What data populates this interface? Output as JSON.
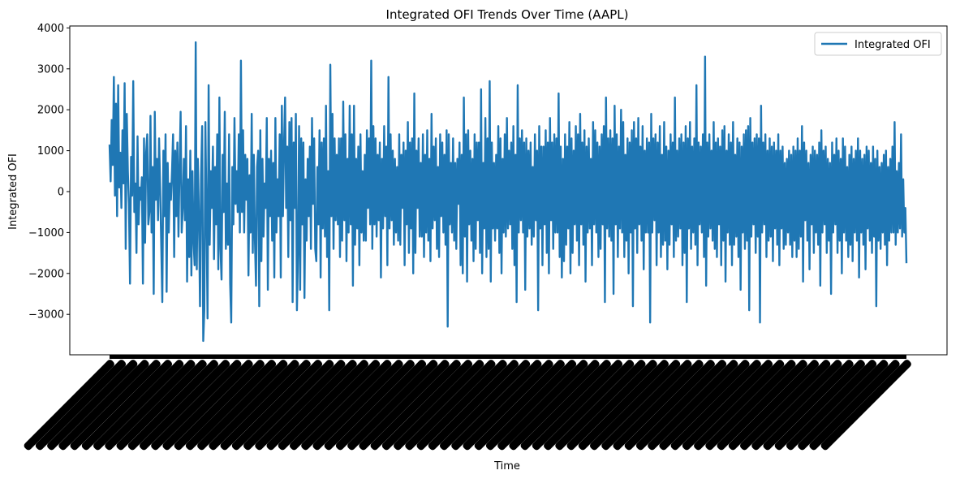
{
  "chart_data": {
    "type": "line",
    "title": "Integrated OFI Trends Over Time (AAPL)",
    "xlabel": "Time",
    "ylabel": "Integrated OFI",
    "ylim": [
      -4000,
      4000
    ],
    "yticks": [
      -3000,
      -2000,
      -1000,
      0,
      1000,
      2000,
      3000,
      4000
    ],
    "ytick_labels": [
      "−3000",
      "−2000",
      "−1000",
      "0",
      "1000",
      "2000",
      "3000",
      "4000"
    ],
    "x_tick_labels_note": "hundreds of overlapping rotated timestamp labels (illegible)",
    "legend_position": "top-right",
    "grid": false,
    "series": [
      {
        "name": "Integrated OFI",
        "color": "#1f77b4",
        "values": [
          1150,
          250,
          1750,
          650,
          2800,
          -100,
          2150,
          -600,
          2600,
          100,
          950,
          -400,
          1500,
          200,
          2650,
          -1400,
          1900,
          500,
          -300,
          -2250,
          850,
          -100,
          2700,
          -500,
          200,
          -1500,
          1350,
          -800,
          100,
          -200,
          350,
          -2250,
          1300,
          -1250,
          950,
          1400,
          -800,
          -500,
          1850,
          -1000,
          600,
          -2500,
          1950,
          -200,
          800,
          -700,
          1300,
          100,
          -1300,
          -2700,
          1000,
          -600,
          1400,
          -2450,
          700,
          -1000,
          200,
          -200,
          500,
          1400,
          -1600,
          1000,
          -600,
          1200,
          -1100,
          600,
          1950,
          -1000,
          -400,
          800,
          -700,
          1600,
          -2200,
          300,
          -1600,
          1000,
          -2050,
          500,
          -1200,
          -1800,
          3650,
          -1900,
          800,
          -600,
          -2800,
          400,
          1600,
          -3650,
          -2900,
          1700,
          -500,
          -3100,
          2600,
          -1300,
          500,
          -400,
          1100,
          -1650,
          600,
          -800,
          1400,
          -1900,
          2300,
          -1400,
          -2150,
          900,
          -500,
          1950,
          -1400,
          200,
          -1300,
          1400,
          -2250,
          -3200,
          600,
          -800,
          1800,
          -300,
          500,
          -500,
          1400,
          -1000,
          3200,
          -500,
          1500,
          -1000,
          900,
          -200,
          800,
          -2050,
          400,
          -1000,
          1900,
          -1500,
          900,
          -1200,
          -2300,
          600,
          1000,
          -2800,
          1500,
          -1700,
          800,
          -1100,
          200,
          -400,
          1800,
          -2400,
          800,
          -600,
          1000,
          -1200,
          700,
          -2100,
          1800,
          -1000,
          300,
          -600,
          1400,
          -2100,
          2100,
          -600,
          1100,
          2300,
          -400,
          1100,
          -1600,
          1700,
          -700,
          1800,
          -2700,
          1200,
          -400,
          1900,
          -2900,
          -1500,
          1600,
          -2400,
          1300,
          -800,
          1200,
          -2600,
          300,
          -1200,
          800,
          -600,
          1100,
          -1400,
          1800,
          -300,
          1300,
          -1400,
          -1700,
          600,
          -800,
          1500,
          -2100,
          1200,
          -900,
          1300,
          -1100,
          2100,
          -1600,
          500,
          -2900,
          3100,
          -600,
          1900,
          -1400,
          1300,
          -700,
          900,
          -800,
          1300,
          -1600,
          1300,
          -1200,
          2200,
          -700,
          1400,
          -1700,
          800,
          -1000,
          2100,
          -800,
          1400,
          -2300,
          2100,
          -1300,
          800,
          -900,
          1100,
          -1800,
          1400,
          -1000,
          500,
          -1200,
          900,
          -1200,
          1500,
          -400,
          1300,
          -800,
          3200,
          -1400,
          1600,
          -800,
          1300,
          -1100,
          900,
          -700,
          1200,
          -2100,
          800,
          -900,
          1600,
          -600,
          1100,
          -1800,
          2800,
          -900,
          1400,
          -700,
          1000,
          -1300,
          800,
          -1000,
          600,
          -1200,
          1400,
          -1300,
          900,
          -400,
          1200,
          -1800,
          1000,
          -800,
          1700,
          -1500,
          1200,
          -900,
          1300,
          -2000,
          2400,
          -1500,
          1000,
          -400,
          1300,
          -1100,
          700,
          -1100,
          1400,
          -1600,
          900,
          -1000,
          1500,
          -1200,
          800,
          -1700,
          1900,
          -900,
          1100,
          -700,
          1300,
          -1400,
          600,
          -1600,
          1400,
          -600,
          1200,
          -1000,
          900,
          -1300,
          1500,
          -3300,
          1400,
          -800,
          700,
          -1000,
          1300,
          -1200,
          700,
          -1400,
          800,
          -300,
          1200,
          -1800,
          900,
          -2000,
          2300,
          -1100,
          1400,
          -2200,
          1500,
          -800,
          1000,
          -1200,
          800,
          -1700,
          1400,
          -1400,
          1200,
          -700,
          1200,
          -1500,
          2500,
          -2000,
          700,
          -900,
          1800,
          -1600,
          1300,
          -1400,
          2700,
          -2200,
          1200,
          -900,
          700,
          -1200,
          900,
          -900,
          1600,
          -1500,
          1300,
          -2000,
          800,
          -1000,
          1400,
          -1100,
          1800,
          -900,
          1000,
          -800,
          1200,
          -1400,
          1600,
          -1800,
          900,
          -2700,
          2600,
          -1000,
          1300,
          -700,
          1500,
          -1000,
          1200,
          -2400,
          1300,
          -1100,
          1000,
          -900,
          1200,
          -1300,
          600,
          -1100,
          1400,
          -700,
          1000,
          -2900,
          1600,
          -900,
          1100,
          -1800,
          1100,
          -800,
          1500,
          -1500,
          1200,
          -2000,
          1800,
          -700,
          1200,
          -1400,
          1400,
          -1000,
          1300,
          -1000,
          2400,
          -1600,
          1100,
          -2100,
          800,
          -1700,
          1400,
          -1300,
          1100,
          -900,
          1700,
          -2000,
          1300,
          -1500,
          1000,
          -800,
          1600,
          -1200,
          1400,
          -1800,
          1900,
          -800,
          1200,
          -1300,
          1500,
          -2200,
          1100,
          -1000,
          1300,
          -900,
          800,
          -1800,
          1700,
          -800,
          1500,
          -1000,
          1200,
          -1600,
          1100,
          -1400,
          1400,
          -800,
          1600,
          -2700,
          2300,
          -900,
          1300,
          -1100,
          1500,
          -1200,
          1300,
          -2500,
          2100,
          -800,
          1400,
          -1600,
          1100,
          -900,
          2000,
          -1000,
          1700,
          -1600,
          900,
          -1200,
          1300,
          -2000,
          1200,
          -1000,
          1500,
          -2800,
          1700,
          -900,
          1300,
          -1500,
          1800,
          -800,
          1100,
          -1200,
          1600,
          -1900,
          1000,
          -1000,
          1300,
          -1000,
          1200,
          -3200,
          1900,
          -1000,
          1300,
          -700,
          1400,
          -1800,
          1200,
          -1000,
          1600,
          -1600,
          900,
          -1300,
          1700,
          -1200,
          1100,
          -1900,
          1000,
          -1300,
          1400,
          -800,
          1200,
          -1600,
          2300,
          -1200,
          1000,
          -1100,
          1300,
          -900,
          1400,
          -1800,
          1200,
          -1500,
          1600,
          -2700,
          1300,
          -900,
          1700,
          -1400,
          1100,
          -1000,
          1300,
          -1300,
          2600,
          -1800,
          1200,
          -800,
          1100,
          -1000,
          1400,
          -1600,
          3300,
          -2300,
          1200,
          -1100,
          1400,
          -900,
          1000,
          -1200,
          1700,
          -1400,
          1200,
          -1600,
          1300,
          -800,
          1100,
          -1800,
          1500,
          -1200,
          1600,
          -2200,
          1000,
          -1000,
          1400,
          -1300,
          1200,
          -1800,
          1700,
          -1300,
          900,
          -1100,
          1300,
          -1600,
          1200,
          -2400,
          1100,
          -1000,
          1400,
          -1400,
          1500,
          -1200,
          1600,
          -2900,
          1800,
          -1100,
          1200,
          -800,
          1300,
          -1500,
          1400,
          -1100,
          1300,
          -3200,
          2100,
          -1000,
          1200,
          -800,
          1400,
          -1600,
          1000,
          -1200,
          1300,
          -1100,
          1100,
          -1700,
          1200,
          -900,
          1000,
          -1300,
          1400,
          -1800,
          1000,
          -900,
          1100,
          -1400,
          700,
          -1300,
          800,
          -1000,
          1000,
          -1300,
          900,
          -1600,
          1100,
          -1200,
          1000,
          -1600,
          1300,
          -1400,
          1000,
          -1100,
          1600,
          -2200,
          1200,
          -700,
          1000,
          -1200,
          700,
          -1900,
          900,
          -800,
          1100,
          -1500,
          1000,
          -1000,
          900,
          -1300,
          1200,
          -2300,
          1500,
          -1000,
          1000,
          -800,
          1100,
          -1500,
          800,
          -1200,
          700,
          -2500,
          1200,
          -1000,
          900,
          -800,
          1300,
          -1500,
          1000,
          -1200,
          800,
          -2000,
          1300,
          -1000,
          1100,
          -1200,
          600,
          -1600,
          900,
          -1300,
          1100,
          -1700,
          800,
          -1000,
          1000,
          -1200,
          1300,
          -2100,
          1000,
          -1000,
          800,
          -1300,
          900,
          -1900,
          1100,
          -900,
          1000,
          -1200,
          700,
          -1500,
          1100,
          -1100,
          800,
          -2800,
          1000,
          -1200,
          600,
          -1400,
          700,
          -1000,
          900,
          -1300,
          1000,
          -1800,
          600,
          -1200,
          800,
          -1000,
          1100,
          -1000,
          1700,
          -1300,
          500,
          -1000,
          700,
          -900,
          1400,
          -1100,
          300,
          -1000,
          -400,
          -1750
        ]
      }
    ]
  }
}
